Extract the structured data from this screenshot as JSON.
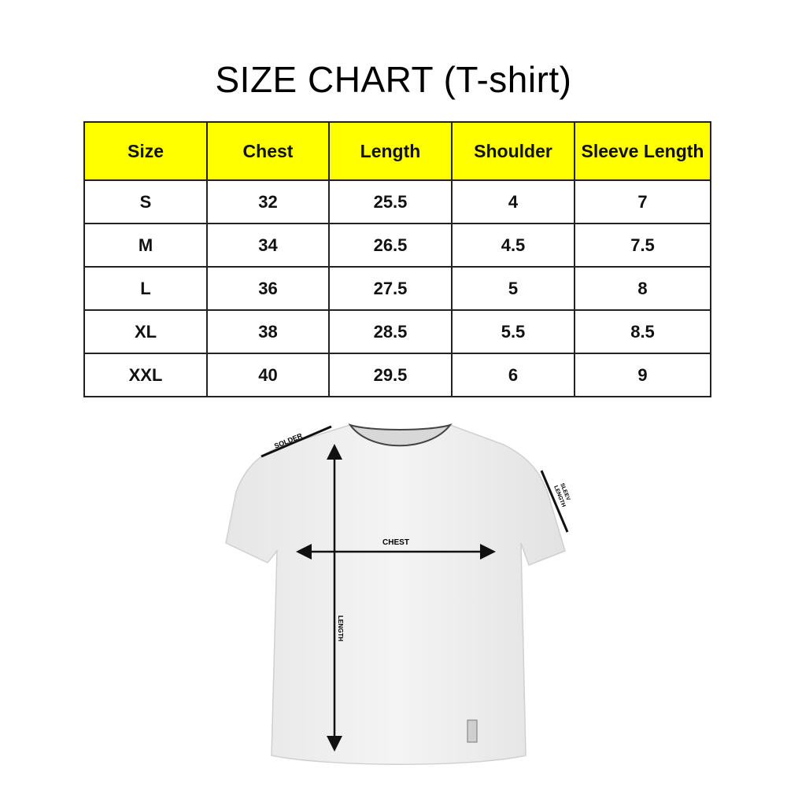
{
  "title": "SIZE CHART (T-shirt)",
  "table": {
    "headers": [
      "Size",
      "Chest",
      "Length",
      "Shoulder",
      "Sleeve Length"
    ],
    "header_color": "#ffff00",
    "rows": [
      [
        "S",
        "32",
        "25.5",
        "4",
        "7"
      ],
      [
        "M",
        "34",
        "26.5",
        "4.5",
        "7.5"
      ],
      [
        "L",
        "36",
        "27.5",
        "5",
        "8"
      ],
      [
        "XL",
        "38",
        "28.5",
        "5.5",
        "8.5"
      ],
      [
        "XXL",
        "40",
        "29.5",
        "6",
        "9"
      ]
    ]
  },
  "diagram": {
    "shoulder_label": "SOLDER",
    "sleeve_label_1": "SLEEV",
    "sleeve_label_2": "LENGTH",
    "chest_label": "CHEST",
    "length_label": "LENGTH"
  }
}
